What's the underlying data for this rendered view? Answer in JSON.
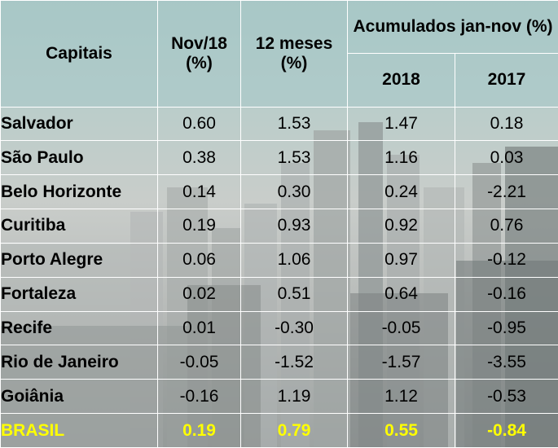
{
  "table": {
    "headers": {
      "capitais": "Capitais",
      "nov18": "Nov/18 (%)",
      "meses12": "12 meses (%)",
      "acumulados": "Acumulados jan-nov (%)",
      "year2018": "2018",
      "year2017": "2017"
    },
    "rows": [
      {
        "capital": "Salvador",
        "nov18": "0.60",
        "meses12": "1.53",
        "acc2018": "1.47",
        "acc2017": "0.18"
      },
      {
        "capital": "São Paulo",
        "nov18": "0.38",
        "meses12": "1.53",
        "acc2018": "1.16",
        "acc2017": "0.03"
      },
      {
        "capital": "Belo Horizonte",
        "nov18": "0.14",
        "meses12": "0.30",
        "acc2018": "0.24",
        "acc2017": "-2.21"
      },
      {
        "capital": "Curitiba",
        "nov18": "0.19",
        "meses12": "0.93",
        "acc2018": "0.92",
        "acc2017": "0.76"
      },
      {
        "capital": "Porto Alegre",
        "nov18": "0.06",
        "meses12": "1.06",
        "acc2018": "0.97",
        "acc2017": "-0.12"
      },
      {
        "capital": "Fortaleza",
        "nov18": "0.02",
        "meses12": "0.51",
        "acc2018": "0.64",
        "acc2017": "-0.16"
      },
      {
        "capital": "Recife",
        "nov18": "0.01",
        "meses12": "-0.30",
        "acc2018": "-0.05",
        "acc2017": "-0.95"
      },
      {
        "capital": "Rio de Janeiro",
        "nov18": "-0.05",
        "meses12": "-1.52",
        "acc2018": "-1.57",
        "acc2017": "-3.55"
      },
      {
        "capital": "Goiânia",
        "nov18": "-0.16",
        "meses12": "1.19",
        "acc2018": "1.12",
        "acc2017": "-0.53"
      }
    ],
    "total": {
      "capital": "BRASIL",
      "nov18": "0.19",
      "meses12": "0.79",
      "acc2018": "0.55",
      "acc2017": "-0.84"
    }
  },
  "colors": {
    "total_text": "#ffff00",
    "header_bg": "#a8c9c8",
    "grid_lines": "#ffffff"
  },
  "background": "city-skyline-photo"
}
